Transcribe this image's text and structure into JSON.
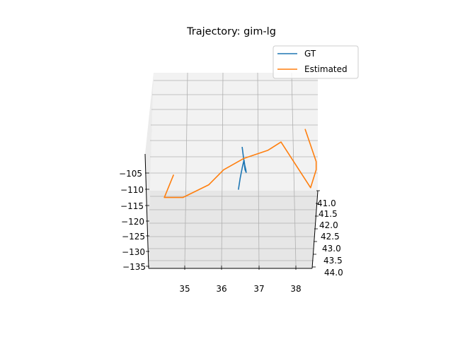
{
  "chart_data": {
    "type": "line",
    "projection": "3d",
    "title": "Trajectory: gim-lg",
    "xlabel": "",
    "ylabel": "",
    "zlabel": "",
    "grid": true,
    "legend_position": "top-right",
    "x_ticks": [
      "35",
      "36",
      "37",
      "38"
    ],
    "y_ticks": [
      "41.0",
      "41.5",
      "42.0",
      "42.5",
      "43.0",
      "43.5",
      "44.0"
    ],
    "z_ticks": [
      "−105",
      "−110",
      "−115",
      "−120",
      "−125",
      "−130",
      "−135"
    ],
    "xlim": [
      34.0,
      38.5
    ],
    "ylim": [
      41.0,
      44.0
    ],
    "zlim": [
      -135,
      -102
    ],
    "series": [
      {
        "name": "GT",
        "color": "#1f77b4",
        "points": [
          {
            "x": 36.45,
            "z": -110.1
          },
          {
            "x": 36.5,
            "z": -106.5
          },
          {
            "x": 36.55,
            "z": -103.5
          },
          {
            "x": 36.6,
            "z": -101.0
          },
          {
            "x": 36.62,
            "z": -102.5
          },
          {
            "x": 36.65,
            "z": -104.0
          },
          {
            "x": 36.66,
            "z": -104.8
          },
          {
            "x": 36.63,
            "z": -104.0
          },
          {
            "x": 36.55,
            "z": -97.0
          }
        ]
      },
      {
        "name": "Estimated",
        "color": "#ff7f0e",
        "points": [
          {
            "x": 34.7,
            "z": -105.5
          },
          {
            "x": 34.45,
            "z": -112.5
          },
          {
            "x": 34.95,
            "z": -112.5
          },
          {
            "x": 35.65,
            "z": -108.6
          },
          {
            "x": 36.05,
            "z": -104.0
          },
          {
            "x": 36.6,
            "z": -100.5
          },
          {
            "x": 37.25,
            "z": -98.0
          },
          {
            "x": 37.6,
            "z": -95.5
          },
          {
            "x": 38.4,
            "z": -109.5
          },
          {
            "x": 38.55,
            "z": -104.0
          },
          {
            "x": 38.55,
            "z": -101.5
          },
          {
            "x": 38.25,
            "z": -91.5
          }
        ]
      }
    ]
  }
}
